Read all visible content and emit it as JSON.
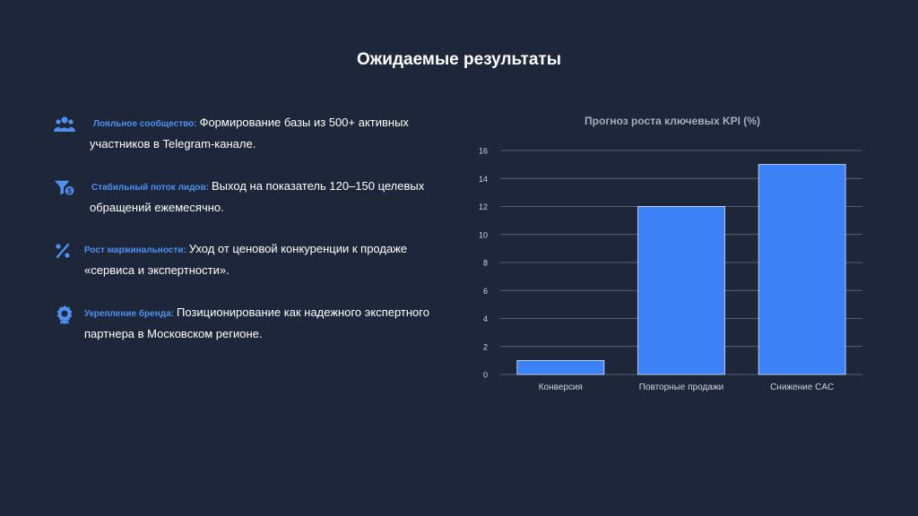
{
  "title": "Ожидаемые результаты",
  "colors": {
    "accent": "#4f90f0",
    "bar": "#3c82f6",
    "background": "#1e2739"
  },
  "items": [
    {
      "icon": "people-icon",
      "label": "Лояльное сообщество:",
      "line1": "Формирование базы из 500+ активных",
      "line2": "участников в Telegram-канале."
    },
    {
      "icon": "funnel-dollar-icon",
      "label": "Стабильный поток лидов:",
      "line1": "Выход на показатель 120–150 целевых",
      "line2": "обращений ежемесячно."
    },
    {
      "icon": "percent-icon",
      "label": "Рост маржинальности:",
      "line1": "Уход от ценовой конкуренции к продаже",
      "line2": "«сервиса и экспертности»."
    },
    {
      "icon": "award-icon",
      "label": "Укрепление бренда:",
      "line1": "Позиционирование как надежного экспертного",
      "line2": "партнера в Московском регионе."
    }
  ],
  "chart_data": {
    "type": "bar",
    "title": "Прогноз роста ключевых KPI (%)",
    "categories": [
      "Конверсия",
      "Повторные продажи",
      "Снижение CAC"
    ],
    "values": [
      1,
      12,
      15
    ],
    "ylim": [
      0,
      16
    ],
    "yticks": [
      "0",
      "2",
      "4",
      "6",
      "8",
      "10",
      "12",
      "14",
      "16"
    ],
    "grid": true
  }
}
